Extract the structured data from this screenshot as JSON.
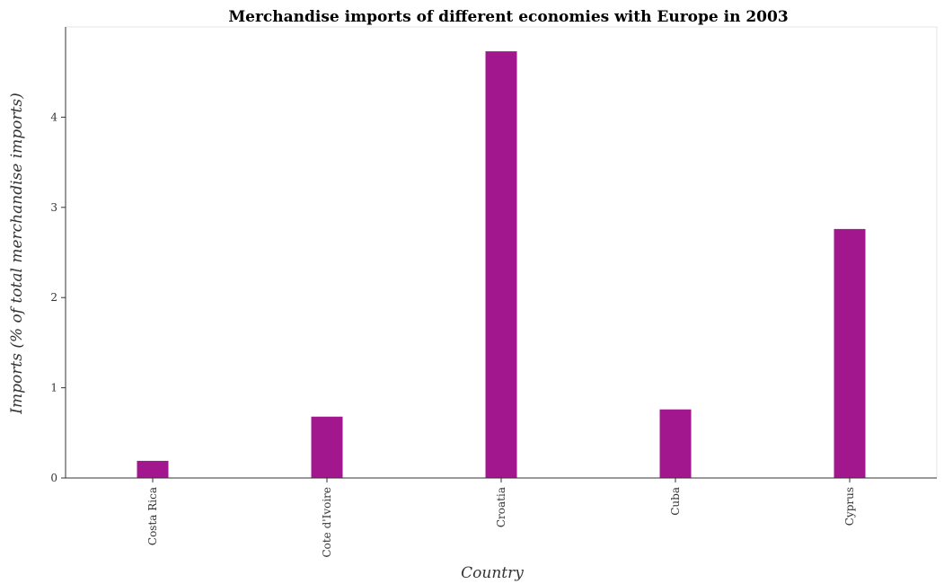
{
  "chart_data": {
    "type": "bar",
    "title": "Merchandise imports of different economies with Europe in 2003",
    "xlabel": "Country",
    "ylabel": "Imports (% of total merchandise imports)",
    "categories": [
      "Costa Rica",
      "Cote d'Ivoire",
      "Croatia",
      "Cuba",
      "Cyprus"
    ],
    "values": [
      0.19,
      0.68,
      4.73,
      0.76,
      2.76
    ],
    "ylim": [
      0,
      5
    ],
    "yticks": [
      "0",
      "1",
      "2",
      "3",
      "4"
    ],
    "bar_color": "#a3178e",
    "grid": false
  }
}
